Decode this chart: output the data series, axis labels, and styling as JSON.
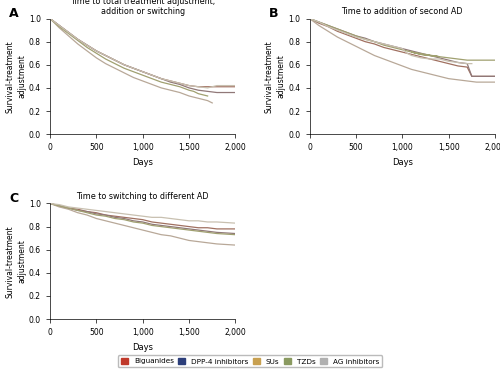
{
  "title_A": "Time to total treatment adjustment,\naddition or switching",
  "title_B": "Time to addition of second AD",
  "title_C": "Time to switching to different AD",
  "ylabel": "Survival-treatment\nadjustment",
  "xlabel": "Days",
  "xlim": [
    0,
    2000
  ],
  "ylim": [
    0.0,
    1.0
  ],
  "xticks": [
    0,
    500,
    1000,
    1500,
    2000
  ],
  "yticks": [
    0.0,
    0.2,
    0.4,
    0.6,
    0.8,
    1.0
  ],
  "colors": {
    "biguanides": "#a07060",
    "dpp4": "#907878",
    "sus": "#b8a898",
    "tzds": "#a0a070",
    "ag": "#c8c0b0"
  },
  "legend_colors": [
    "#c0392b",
    "#2c3e7a",
    "#c8a050",
    "#8a9a60",
    "#b0b0b0"
  ],
  "legend_labels": [
    "Biguanides",
    "DPP-4 inhibitors",
    "SUs",
    "TZDs",
    "AG inhibitors"
  ],
  "panel_A": {
    "biguanides": {
      "x": [
        0,
        100,
        200,
        300,
        400,
        500,
        600,
        700,
        800,
        900,
        1000,
        1100,
        1200,
        1300,
        1400,
        1500,
        1600,
        1700,
        1750,
        2000
      ],
      "y": [
        1.0,
        0.94,
        0.88,
        0.82,
        0.77,
        0.72,
        0.68,
        0.64,
        0.6,
        0.57,
        0.54,
        0.51,
        0.48,
        0.46,
        0.44,
        0.42,
        0.41,
        0.41,
        0.41,
        0.41
      ]
    },
    "dpp4": {
      "x": [
        0,
        100,
        200,
        300,
        400,
        500,
        600,
        700,
        800,
        900,
        1000,
        1100,
        1200,
        1300,
        1400,
        1500,
        1600,
        1700,
        1800,
        2000
      ],
      "y": [
        1.0,
        0.94,
        0.88,
        0.82,
        0.77,
        0.72,
        0.68,
        0.64,
        0.6,
        0.57,
        0.54,
        0.51,
        0.48,
        0.45,
        0.43,
        0.4,
        0.38,
        0.37,
        0.36,
        0.36
      ]
    },
    "sus": {
      "x": [
        0,
        100,
        200,
        300,
        400,
        500,
        600,
        700,
        800,
        900,
        1000,
        1100,
        1200,
        1300,
        1400,
        1500,
        1600,
        1650,
        1700,
        1750
      ],
      "y": [
        1.0,
        0.92,
        0.85,
        0.78,
        0.72,
        0.66,
        0.61,
        0.57,
        0.53,
        0.49,
        0.46,
        0.43,
        0.4,
        0.38,
        0.36,
        0.33,
        0.31,
        0.3,
        0.29,
        0.27
      ]
    },
    "tzds": {
      "x": [
        0,
        100,
        200,
        300,
        400,
        500,
        600,
        700,
        800,
        900,
        1000,
        1100,
        1200,
        1300,
        1400,
        1500,
        1550,
        1600,
        1650,
        1700
      ],
      "y": [
        1.0,
        0.93,
        0.87,
        0.81,
        0.75,
        0.7,
        0.65,
        0.61,
        0.57,
        0.54,
        0.51,
        0.48,
        0.45,
        0.43,
        0.41,
        0.38,
        0.37,
        0.35,
        0.34,
        0.33
      ]
    },
    "ag": {
      "x": [
        0,
        100,
        200,
        300,
        400,
        500,
        600,
        700,
        800,
        900,
        1000,
        1100,
        1200,
        1300,
        1400,
        1500,
        1600,
        1700,
        1800,
        2000
      ],
      "y": [
        1.0,
        0.94,
        0.88,
        0.82,
        0.77,
        0.72,
        0.68,
        0.64,
        0.6,
        0.57,
        0.54,
        0.51,
        0.48,
        0.46,
        0.44,
        0.42,
        0.41,
        0.4,
        0.42,
        0.42
      ]
    }
  },
  "panel_B": {
    "biguanides": {
      "x": [
        0,
        100,
        200,
        300,
        400,
        500,
        600,
        700,
        800,
        900,
        1000,
        1100,
        1200,
        1300,
        1400,
        1500,
        1600,
        1700,
        1750,
        2000
      ],
      "y": [
        1.0,
        0.96,
        0.93,
        0.89,
        0.86,
        0.83,
        0.8,
        0.78,
        0.75,
        0.73,
        0.71,
        0.69,
        0.67,
        0.65,
        0.63,
        0.61,
        0.59,
        0.58,
        0.5,
        0.5
      ]
    },
    "dpp4": {
      "x": [
        0,
        100,
        200,
        300,
        400,
        500,
        600,
        700,
        800,
        900,
        1000,
        1100,
        1200,
        1300,
        1400,
        1500,
        1600,
        1700,
        1750,
        2000
      ],
      "y": [
        1.0,
        0.97,
        0.94,
        0.91,
        0.88,
        0.85,
        0.83,
        0.8,
        0.78,
        0.76,
        0.74,
        0.72,
        0.7,
        0.68,
        0.66,
        0.64,
        0.62,
        0.61,
        0.5,
        0.5
      ]
    },
    "sus": {
      "x": [
        0,
        100,
        200,
        300,
        400,
        500,
        600,
        700,
        800,
        900,
        1000,
        1100,
        1200,
        1300,
        1400,
        1500,
        1600,
        1700,
        1800,
        2000
      ],
      "y": [
        1.0,
        0.94,
        0.89,
        0.84,
        0.8,
        0.76,
        0.72,
        0.68,
        0.65,
        0.62,
        0.59,
        0.56,
        0.54,
        0.52,
        0.5,
        0.48,
        0.47,
        0.46,
        0.45,
        0.45
      ]
    },
    "tzds": {
      "x": [
        0,
        100,
        200,
        300,
        400,
        500,
        600,
        700,
        800,
        900,
        1000,
        1100,
        1200,
        1300,
        1400,
        1100,
        1200,
        1300,
        1400,
        1500,
        1600,
        1700,
        1750,
        2000
      ],
      "y": [
        1.0,
        0.97,
        0.94,
        0.91,
        0.88,
        0.85,
        0.82,
        0.8,
        0.77,
        0.75,
        0.73,
        0.71,
        0.69,
        0.68,
        0.67,
        0.71,
        0.69,
        0.68,
        0.67,
        0.66,
        0.65,
        0.64,
        0.64,
        0.64
      ]
    },
    "ag": {
      "x": [
        0,
        100,
        200,
        300,
        400,
        500,
        600,
        700,
        800,
        900,
        1000,
        1050,
        1100,
        1150,
        1200,
        1300,
        1400,
        1500,
        1600,
        1700,
        1750
      ],
      "y": [
        1.0,
        0.97,
        0.93,
        0.9,
        0.87,
        0.84,
        0.82,
        0.8,
        0.78,
        0.76,
        0.74,
        0.7,
        0.68,
        0.67,
        0.66,
        0.65,
        0.65,
        0.63,
        0.62,
        0.61,
        0.61
      ]
    }
  },
  "panel_C": {
    "biguanides": {
      "x": [
        0,
        100,
        200,
        300,
        400,
        500,
        600,
        700,
        800,
        900,
        1000,
        1100,
        1200,
        1300,
        1400,
        1500,
        1600,
        1700,
        1800,
        2000
      ],
      "y": [
        1.0,
        0.98,
        0.96,
        0.95,
        0.93,
        0.92,
        0.9,
        0.89,
        0.88,
        0.87,
        0.86,
        0.84,
        0.83,
        0.82,
        0.81,
        0.8,
        0.79,
        0.79,
        0.78,
        0.78
      ]
    },
    "dpp4": {
      "x": [
        0,
        100,
        200,
        300,
        400,
        500,
        600,
        700,
        800,
        900,
        1000,
        1100,
        1200,
        1300,
        1400,
        1500,
        1600,
        1700,
        1800,
        2000
      ],
      "y": [
        1.0,
        0.98,
        0.96,
        0.94,
        0.93,
        0.91,
        0.9,
        0.88,
        0.87,
        0.85,
        0.84,
        0.82,
        0.81,
        0.8,
        0.79,
        0.78,
        0.77,
        0.76,
        0.75,
        0.74
      ]
    },
    "sus": {
      "x": [
        0,
        100,
        200,
        300,
        400,
        500,
        600,
        700,
        800,
        900,
        1000,
        1100,
        1200,
        1300,
        1400,
        1500,
        1600,
        1700,
        1800,
        2000
      ],
      "y": [
        1.0,
        0.97,
        0.95,
        0.92,
        0.9,
        0.87,
        0.85,
        0.83,
        0.81,
        0.79,
        0.77,
        0.75,
        0.73,
        0.72,
        0.7,
        0.68,
        0.67,
        0.66,
        0.65,
        0.64
      ]
    },
    "tzds": {
      "x": [
        0,
        100,
        200,
        300,
        400,
        500,
        600,
        700,
        800,
        900,
        1000,
        1100,
        1200,
        1300,
        1400,
        1500,
        1600,
        1700,
        1800,
        2000
      ],
      "y": [
        1.0,
        0.98,
        0.96,
        0.94,
        0.92,
        0.9,
        0.89,
        0.87,
        0.86,
        0.84,
        0.83,
        0.81,
        0.8,
        0.79,
        0.78,
        0.77,
        0.76,
        0.75,
        0.74,
        0.73
      ]
    },
    "ag": {
      "x": [
        0,
        100,
        200,
        300,
        400,
        500,
        600,
        700,
        800,
        900,
        1000,
        1100,
        1200,
        1300,
        1400,
        1500,
        1600,
        1700,
        1800,
        2000
      ],
      "y": [
        1.0,
        0.99,
        0.97,
        0.96,
        0.95,
        0.94,
        0.93,
        0.92,
        0.91,
        0.9,
        0.89,
        0.88,
        0.88,
        0.87,
        0.86,
        0.85,
        0.85,
        0.84,
        0.84,
        0.83
      ]
    }
  }
}
